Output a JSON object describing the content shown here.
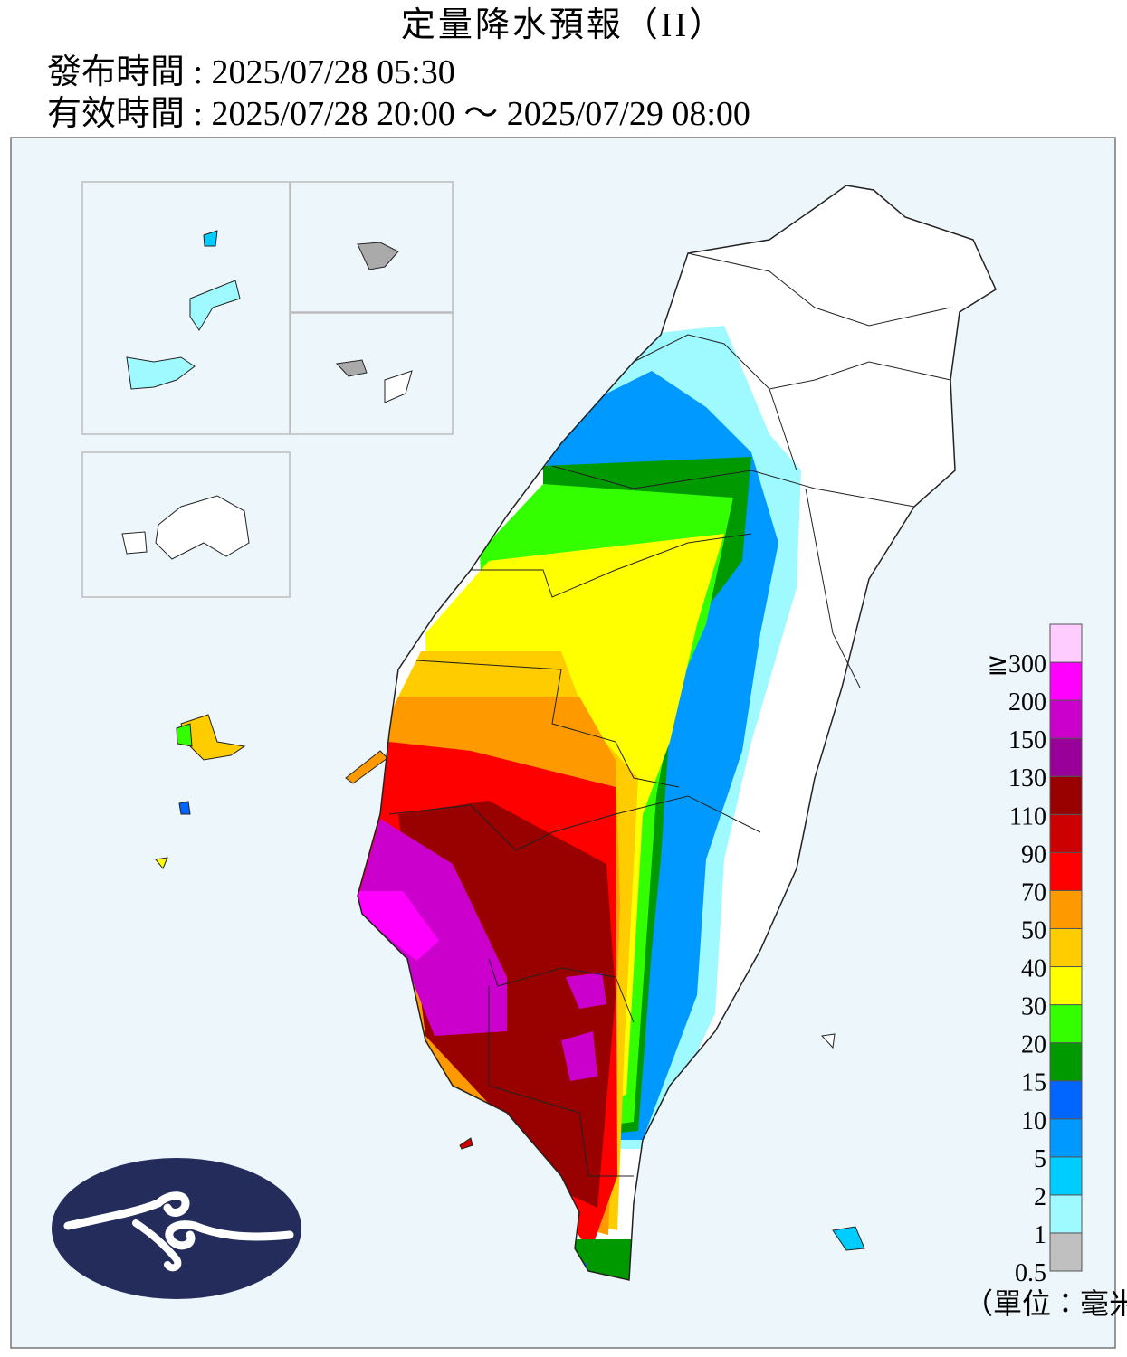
{
  "header": {
    "title": "定量降水預報（II）",
    "issue_time": "發布時間 : 2025/07/28 05:30",
    "valid_time": "有效時間 : 2025/07/28 20:00 ～ 2025/07/29 08:00"
  },
  "legend": {
    "labels": [
      "0.5",
      "1",
      "2",
      "5",
      "10",
      "15",
      "20",
      "30",
      "40",
      "50",
      "70",
      "90",
      "110",
      "130",
      "150",
      "200",
      "≧300"
    ],
    "colors": [
      "#c0c0c0",
      "#9ffaff",
      "#00cdff",
      "#0099ff",
      "#0066ff",
      "#009900",
      "#33ff00",
      "#ffff00",
      "#ffcc00",
      "#ff9900",
      "#ff0000",
      "#cc0000",
      "#990000",
      "#990099",
      "#cc00cc",
      "#ff00ff",
      "#ffccff"
    ],
    "unit": "（單位：毫米）"
  }
}
